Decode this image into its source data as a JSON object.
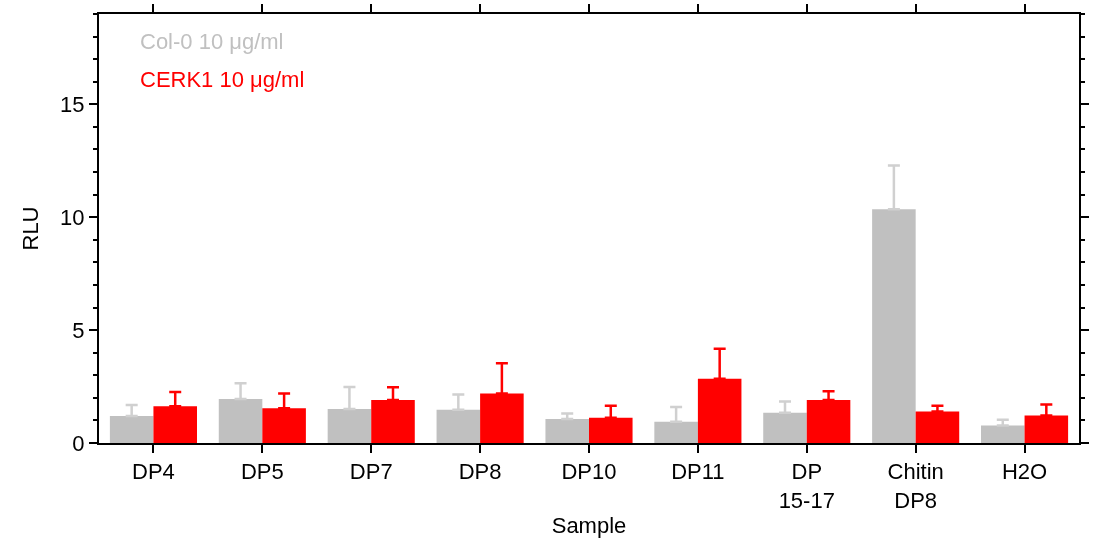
{
  "chart_data": {
    "type": "bar",
    "xlabel": "Sample",
    "ylabel": "RLU",
    "categories": [
      "DP4",
      "DP5",
      "DP7",
      "DP8",
      "DP10",
      "DP11",
      "DP\n15-17",
      "Chitin\nDP8",
      "H2O"
    ],
    "series": [
      {
        "name": "Col-0 10 μg/ml",
        "color": "#c0c0c0",
        "values": [
          1.2,
          1.95,
          1.51,
          1.47,
          1.06,
          0.94,
          1.34,
          10.35,
          0.77
        ],
        "errors": [
          [
            1.2,
            1.68
          ],
          [
            1.95,
            2.65
          ],
          [
            1.51,
            2.48
          ],
          [
            1.47,
            2.15
          ],
          [
            1.06,
            1.31
          ],
          [
            0.94,
            1.59
          ],
          [
            1.34,
            1.84
          ],
          [
            10.35,
            12.29
          ],
          [
            0.77,
            1.03
          ]
        ]
      },
      {
        "name": "CERK1 10 μg/ml",
        "color": "#ff0000",
        "values": [
          1.63,
          1.54,
          1.9,
          2.19,
          1.12,
          2.85,
          1.9,
          1.39,
          1.22
        ],
        "errors": [
          [
            1.63,
            2.26
          ],
          [
            1.54,
            2.19
          ],
          [
            1.9,
            2.47
          ],
          [
            2.19,
            3.53
          ],
          [
            1.12,
            1.65
          ],
          [
            2.85,
            4.17
          ],
          [
            1.9,
            2.29
          ],
          [
            1.39,
            1.65
          ],
          [
            1.22,
            1.7
          ]
        ]
      }
    ],
    "ylim": [
      0,
      19
    ],
    "yticks": [
      0,
      5,
      10,
      15
    ],
    "legend": "top left"
  }
}
